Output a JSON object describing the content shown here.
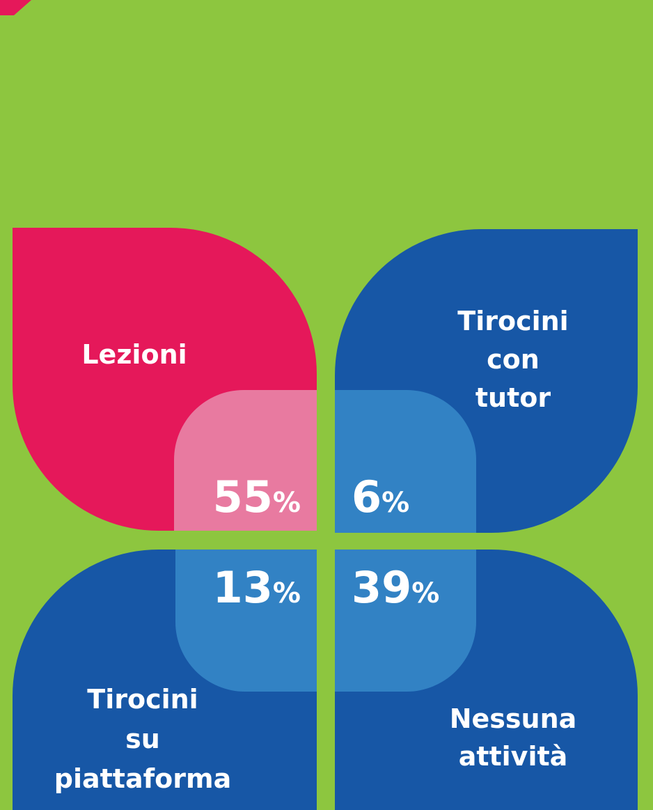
{
  "chart_data": {
    "type": "petal",
    "categories": [
      [
        "Lezioni"
      ],
      [
        "Tirocini",
        "con",
        "tutor"
      ],
      [
        "Tirocini",
        "su",
        "piattaforma"
      ],
      [
        "Nessuna",
        "attività"
      ]
    ],
    "values": [
      55,
      6,
      13,
      39
    ],
    "unit": "%",
    "colors": [
      "#e5185a",
      "#1757a6",
      "#1757a6",
      "#1757a6"
    ],
    "inner_colors": [
      "#e87aa0",
      "#3282c4",
      "#3282c4",
      "#3282c4"
    ]
  }
}
